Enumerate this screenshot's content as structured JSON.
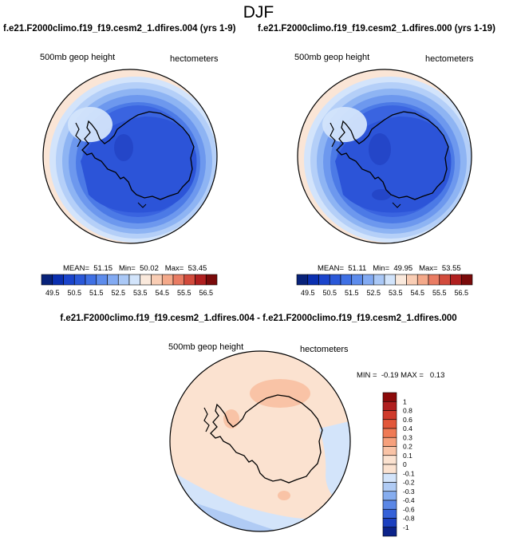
{
  "page": {
    "season_title": "DJF",
    "diff_title": "f.e21.F2000climo.f19_f19.cesm2_1.dfires.004 - f.e21.F2000climo.f19_f19.cesm2_1.dfires.000"
  },
  "panels": {
    "left": {
      "title": "f.e21.F2000climo.f19_f19.cesm2_1.dfires.004 (yrs 1-9)",
      "label_left": "500mb geop height",
      "label_right": "hectometers",
      "stats": "MEAN=  51.15   Min=  50.02   Max=  53.45"
    },
    "right": {
      "title": "f.e21.F2000climo.f19_f19.cesm2_1.dfires.000 (yrs 1-19)",
      "label_left": "500mb geop height",
      "label_right": "hectometers",
      "stats": "MEAN=  51.11   Min=  49.95   Max=  53.55"
    },
    "diff": {
      "label_left": "500mb geop height",
      "label_right": "hectometers",
      "stats": "MIN =  -0.19 MAX =   0.13"
    }
  },
  "chart_data": [
    {
      "type": "heatmap",
      "projection": "south-polar-stereographic",
      "variable": "500mb geop height",
      "units": "hectometers",
      "stats": {
        "mean": 51.15,
        "min": 50.02,
        "max": 53.45
      },
      "contour_levels": [
        49.5,
        50,
        50.5,
        51,
        51.5,
        52,
        52.5,
        53,
        53.5,
        54,
        54.5,
        55,
        55.5,
        56,
        56.5
      ],
      "colorbar_labels": [
        "49.5",
        "50.5",
        "51.5",
        "52.5",
        "53.5",
        "54.5",
        "55.5",
        "56.5"
      ],
      "colors": [
        "#08227a",
        "#0a2fb0",
        "#1a44cc",
        "#2a58d8",
        "#3f70e4",
        "#5d8cec",
        "#82aaf2",
        "#aac8f6",
        "#d2e4fb",
        "#fae9dc",
        "#f9cdb4",
        "#f4a98a",
        "#e97c63",
        "#d24b3c",
        "#b01f1f",
        "#7a0a0a"
      ]
    },
    {
      "type": "heatmap",
      "projection": "south-polar-stereographic",
      "variable": "500mb geop height",
      "units": "hectometers",
      "stats": {
        "mean": 51.11,
        "min": 49.95,
        "max": 53.55
      },
      "contour_levels": [
        49.5,
        50,
        50.5,
        51,
        51.5,
        52,
        52.5,
        53,
        53.5,
        54,
        54.5,
        55,
        55.5,
        56,
        56.5
      ],
      "colorbar_labels": [
        "49.5",
        "50.5",
        "51.5",
        "52.5",
        "53.5",
        "54.5",
        "55.5",
        "56.5"
      ],
      "colors": [
        "#08227a",
        "#0a2fb0",
        "#1a44cc",
        "#2a58d8",
        "#3f70e4",
        "#5d8cec",
        "#82aaf2",
        "#aac8f6",
        "#d2e4fb",
        "#fae9dc",
        "#f9cdb4",
        "#f4a98a",
        "#e97c63",
        "#d24b3c",
        "#b01f1f",
        "#7a0a0a"
      ]
    },
    {
      "type": "heatmap",
      "projection": "south-polar-stereographic",
      "variable": "500mb geop height",
      "units": "hectometers",
      "stats": {
        "min": -0.19,
        "max": 0.13
      },
      "colorbar_labels": [
        "1",
        "0.8",
        "0.6",
        "0.4",
        "0.3",
        "0.2",
        "0.1",
        "0",
        "-0.1",
        "-0.2",
        "-0.3",
        "-0.4",
        "-0.6",
        "-0.8",
        "-1"
      ],
      "colors": [
        "#8c0a0a",
        "#b01f1f",
        "#cf3a2b",
        "#e2573a",
        "#ef7a55",
        "#f6a07c",
        "#f9c3a6",
        "#fbe2d0",
        "#fbe2d0",
        "#d3e4fa",
        "#b0cbf4",
        "#86adef",
        "#5b87e6",
        "#3561d8",
        "#1c40bf",
        "#0c238a"
      ]
    }
  ]
}
